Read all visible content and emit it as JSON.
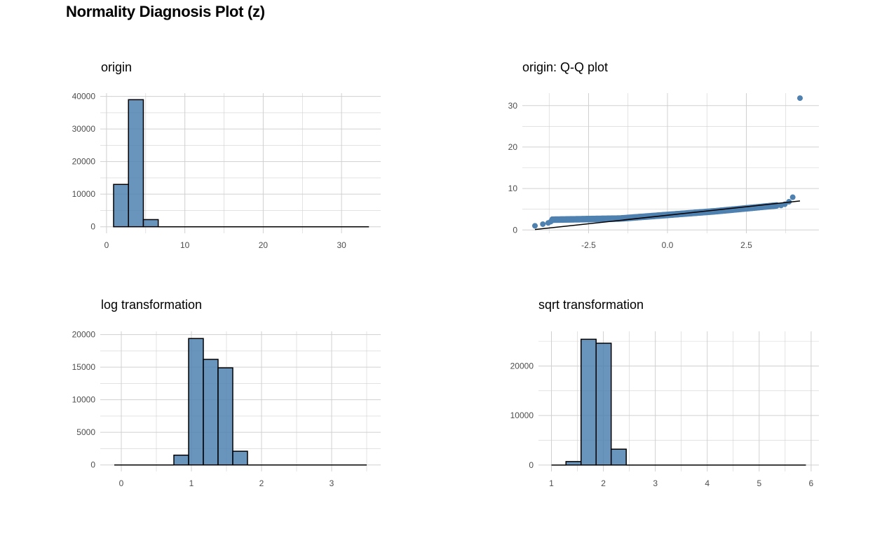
{
  "title": "Normality Diagnosis Plot (z)",
  "colors": {
    "fill": "#4F81B0",
    "outline": "#000000",
    "grid": "#d0d0d0",
    "text": "#4d4d4d"
  },
  "chart_data": [
    {
      "id": "origin",
      "type": "bar",
      "title": "origin",
      "xlim": [
        -0.8,
        35
      ],
      "ylim": [
        -2000,
        41000
      ],
      "xticks": [
        0,
        10,
        20,
        30
      ],
      "xtick_labels": [
        "0",
        "10",
        "20",
        "30"
      ],
      "yticks": [
        0,
        10000,
        20000,
        30000,
        40000
      ],
      "ytick_labels": [
        "0",
        "10000",
        "20000",
        "30000",
        "40000"
      ],
      "bins": [
        {
          "x0": 0.9,
          "x1": 2.8,
          "value": 13000
        },
        {
          "x0": 2.8,
          "x1": 4.7,
          "value": 39000
        },
        {
          "x0": 4.7,
          "x1": 6.6,
          "value": 2200
        },
        {
          "x0": 6.6,
          "x1": 33.5,
          "value": 0
        }
      ]
    },
    {
      "id": "qq",
      "type": "scatter",
      "title": "origin: Q-Q plot",
      "xlim": [
        -4.6,
        4.8
      ],
      "ylim": [
        -0.8,
        33
      ],
      "xticks": [
        -2.5,
        0.0,
        2.5
      ],
      "xtick_labels": [
        "-2.5",
        "0.0",
        "2.5"
      ],
      "yticks": [
        0,
        10,
        20,
        30
      ],
      "ytick_labels": [
        "0",
        "10",
        "20",
        "30"
      ],
      "reference_line": [
        [
          -4.2,
          0.1
        ],
        [
          4.2,
          7.0
        ]
      ]
    },
    {
      "id": "log",
      "type": "bar",
      "title": "log transformation",
      "xlim": [
        -0.3,
        3.7
      ],
      "ylim": [
        -1000,
        20500
      ],
      "xticks": [
        0,
        1,
        2,
        3
      ],
      "xtick_labels": [
        "0",
        "1",
        "2",
        "3"
      ],
      "yticks": [
        0,
        5000,
        10000,
        15000,
        20000
      ],
      "ytick_labels": [
        "0",
        "5000",
        "10000",
        "15000",
        "20000"
      ],
      "bins": [
        {
          "x0": -0.1,
          "x1": 0.75,
          "value": 0
        },
        {
          "x0": 0.75,
          "x1": 0.96,
          "value": 1500
        },
        {
          "x0": 0.96,
          "x1": 1.17,
          "value": 19400
        },
        {
          "x0": 1.17,
          "x1": 1.38,
          "value": 16200
        },
        {
          "x0": 1.38,
          "x1": 1.59,
          "value": 14900
        },
        {
          "x0": 1.59,
          "x1": 1.8,
          "value": 2100
        },
        {
          "x0": 1.8,
          "x1": 3.5,
          "value": 0
        }
      ]
    },
    {
      "id": "sqrt",
      "type": "bar",
      "title": "sqrt transformation",
      "xlim": [
        0.75,
        6.15
      ],
      "ylim": [
        -1300,
        27000
      ],
      "xticks": [
        1,
        2,
        3,
        4,
        5,
        6
      ],
      "xtick_labels": [
        "1",
        "2",
        "3",
        "4",
        "5",
        "6"
      ],
      "yticks": [
        0,
        10000,
        20000
      ],
      "ytick_labels": [
        "0",
        "10000",
        "20000"
      ],
      "bins": [
        {
          "x0": 1.0,
          "x1": 1.28,
          "value": 0
        },
        {
          "x0": 1.28,
          "x1": 1.57,
          "value": 700
        },
        {
          "x0": 1.57,
          "x1": 1.86,
          "value": 25400
        },
        {
          "x0": 1.86,
          "x1": 2.15,
          "value": 24600
        },
        {
          "x0": 2.15,
          "x1": 2.44,
          "value": 3200
        },
        {
          "x0": 2.44,
          "x1": 5.9,
          "value": 0
        }
      ]
    }
  ]
}
